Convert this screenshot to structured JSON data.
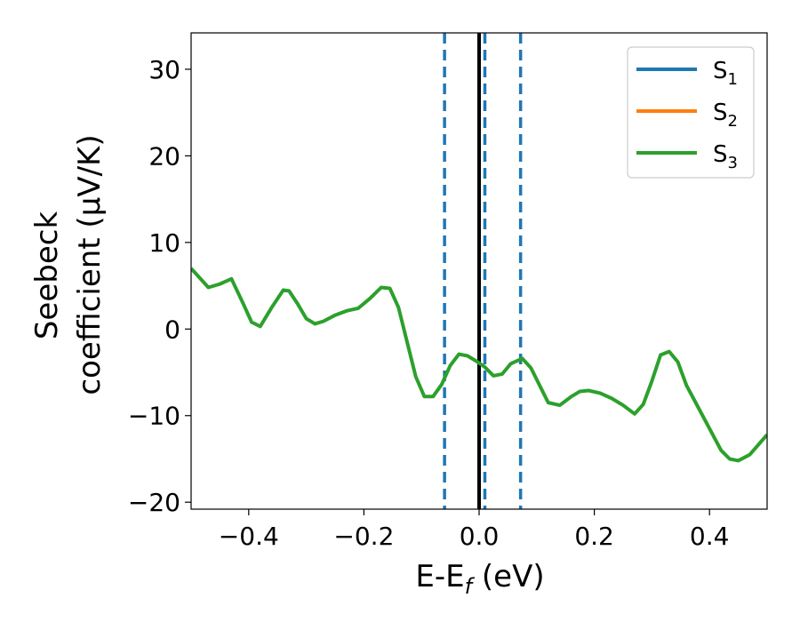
{
  "chart_data": {
    "type": "line",
    "title": "",
    "xlabel": "E-E_f (eV)",
    "xlabel_parts": {
      "main": "E-E",
      "sub": "f",
      "tail": " (eV)"
    },
    "ylabel_line1": "Seebeck",
    "ylabel_line2": "coefficient  (μV/K)",
    "xlim": [
      -0.5,
      0.5
    ],
    "ylim": [
      -20.8,
      34.2
    ],
    "xticks": [
      -0.4,
      -0.2,
      0.0,
      0.2,
      0.4
    ],
    "xtick_labels": [
      "−0.4",
      "−0.2",
      "0.0",
      "0.2",
      "0.4"
    ],
    "yticks": [
      -20,
      -10,
      0,
      10,
      20,
      30
    ],
    "ytick_labels": [
      "−20",
      "−10",
      "0",
      "10",
      "20",
      "30"
    ],
    "grid": false,
    "legend_position": "top-right",
    "series": [
      {
        "name": "S",
        "sub": "1",
        "color": "#1f77b4",
        "x": [],
        "y": []
      },
      {
        "name": "S",
        "sub": "2",
        "color": "#ff7f0e",
        "x": [],
        "y": []
      },
      {
        "name": "S",
        "sub": "3",
        "color": "#2ca02c",
        "x": [
          -0.5,
          -0.47,
          -0.45,
          -0.43,
          -0.41,
          -0.395,
          -0.38,
          -0.36,
          -0.34,
          -0.33,
          -0.315,
          -0.3,
          -0.285,
          -0.27,
          -0.25,
          -0.23,
          -0.21,
          -0.19,
          -0.17,
          -0.155,
          -0.14,
          -0.125,
          -0.11,
          -0.095,
          -0.08,
          -0.065,
          -0.05,
          -0.035,
          -0.02,
          -0.005,
          0.01,
          0.025,
          0.04,
          0.055,
          0.075,
          0.09,
          0.105,
          0.12,
          0.14,
          0.16,
          0.175,
          0.19,
          0.21,
          0.23,
          0.25,
          0.27,
          0.285,
          0.3,
          0.315,
          0.33,
          0.345,
          0.36,
          0.38,
          0.4,
          0.42,
          0.435,
          0.45,
          0.47,
          0.5
        ],
        "y": [
          7.0,
          4.8,
          5.2,
          5.8,
          3.0,
          0.8,
          0.3,
          2.5,
          4.5,
          4.4,
          2.9,
          1.2,
          0.6,
          0.9,
          1.6,
          2.1,
          2.4,
          3.5,
          4.8,
          4.7,
          2.5,
          -1.5,
          -5.5,
          -7.8,
          -7.8,
          -6.4,
          -4.2,
          -2.9,
          -3.1,
          -3.7,
          -4.4,
          -5.4,
          -5.2,
          -4.0,
          -3.4,
          -4.5,
          -6.5,
          -8.5,
          -8.8,
          -7.8,
          -7.2,
          -7.1,
          -7.4,
          -8.0,
          -8.8,
          -9.8,
          -8.7,
          -6.0,
          -3.0,
          -2.6,
          -3.8,
          -6.5,
          -9.0,
          -11.5,
          -14.0,
          -15.0,
          -15.2,
          -14.5,
          -12.2
        ]
      }
    ],
    "vertical_lines": [
      {
        "x": -0.06,
        "style": "dashed",
        "color": "#1f77b4"
      },
      {
        "x": 0.0,
        "style": "solid",
        "color": "#000000"
      },
      {
        "x": 0.01,
        "style": "dashed",
        "color": "#1f77b4"
      },
      {
        "x": 0.072,
        "style": "dashed",
        "color": "#1f77b4"
      }
    ]
  }
}
